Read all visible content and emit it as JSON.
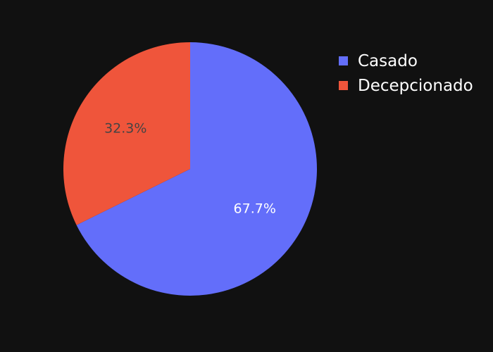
{
  "chart_data": {
    "type": "pie",
    "labels": [
      "Casado",
      "Decepcionado"
    ],
    "values": [
      67.7,
      32.3
    ],
    "text_labels": [
      "67.7%",
      "32.3%"
    ],
    "colors": [
      "#636efa",
      "#ef553b"
    ],
    "label_colors": [
      "#ffffff",
      "#444444"
    ],
    "legend_position": "top-right",
    "title": ""
  },
  "legend": {
    "items": [
      {
        "label": "Casado",
        "color": "#636efa"
      },
      {
        "label": "Decepcionado",
        "color": "#ef553b"
      }
    ]
  },
  "background_color": "#111111"
}
